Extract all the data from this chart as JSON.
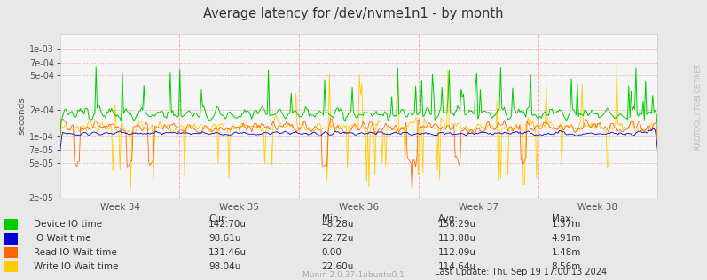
{
  "title": "Average latency for /dev/nvme1n1 - by month",
  "ylabel": "seconds",
  "xlabel_weeks": [
    "Week 34",
    "Week 35",
    "Week 36",
    "Week 37",
    "Week 38"
  ],
  "ylim_min": 2e-05,
  "ylim_max": 0.0015,
  "yticks": [
    2e-05,
    5e-05,
    7e-05,
    0.0001,
    0.0002,
    0.0005,
    0.0007,
    0.001
  ],
  "bg_color": "#e8e8e8",
  "plot_bg": "#f5f5f5",
  "line_colors": {
    "device_io": "#00cc00",
    "io_wait": "#0000cc",
    "read_io_wait": "#ff6600",
    "write_io_wait": "#ffcc00"
  },
  "vline_positions": [
    0.2,
    0.4,
    0.6,
    0.8
  ],
  "legend_labels": [
    "Device IO time",
    "IO Wait time",
    "Read IO Wait time",
    "Write IO Wait time"
  ],
  "stats": {
    "device_io": [
      "142.70u",
      "48.28u",
      "156.29u",
      "1.37m"
    ],
    "io_wait": [
      "98.61u",
      "22.72u",
      "113.88u",
      "4.91m"
    ],
    "read_io_wait": [
      "131.46u",
      "0.00",
      "112.09u",
      "1.48m"
    ],
    "write_io_wait": [
      "98.04u",
      "22.60u",
      "114.64u",
      "8.56m"
    ]
  },
  "footer": "Munin 2.0.37-1ubuntu0.1",
  "last_update": "Last update: Thu Sep 19 17:00:13 2024",
  "right_label": "RRDTOOL / TOBI OETIKER",
  "num_points": 500
}
